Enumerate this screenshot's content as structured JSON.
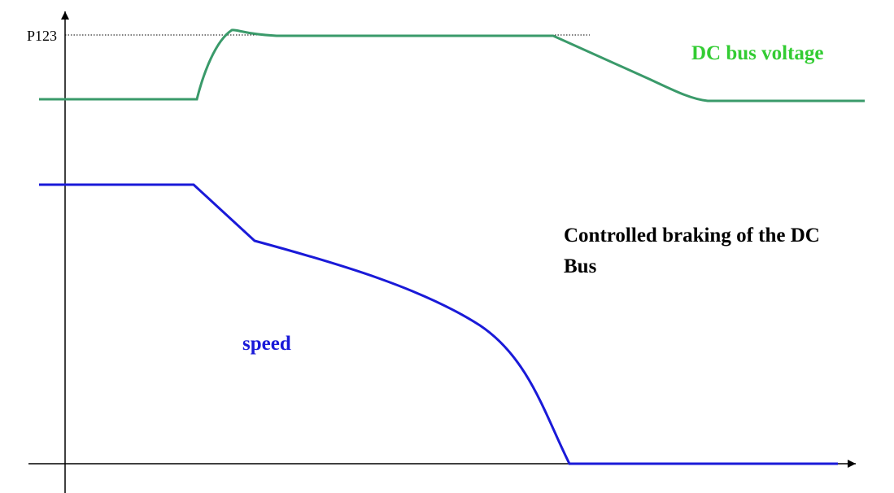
{
  "axis_label": "P123",
  "curves": [
    {
      "label": "DC bus voltage"
    },
    {
      "label": "speed"
    }
  ],
  "annotation": {
    "lines": [
      "Controlled braking of the DC",
      "Bus"
    ]
  }
}
